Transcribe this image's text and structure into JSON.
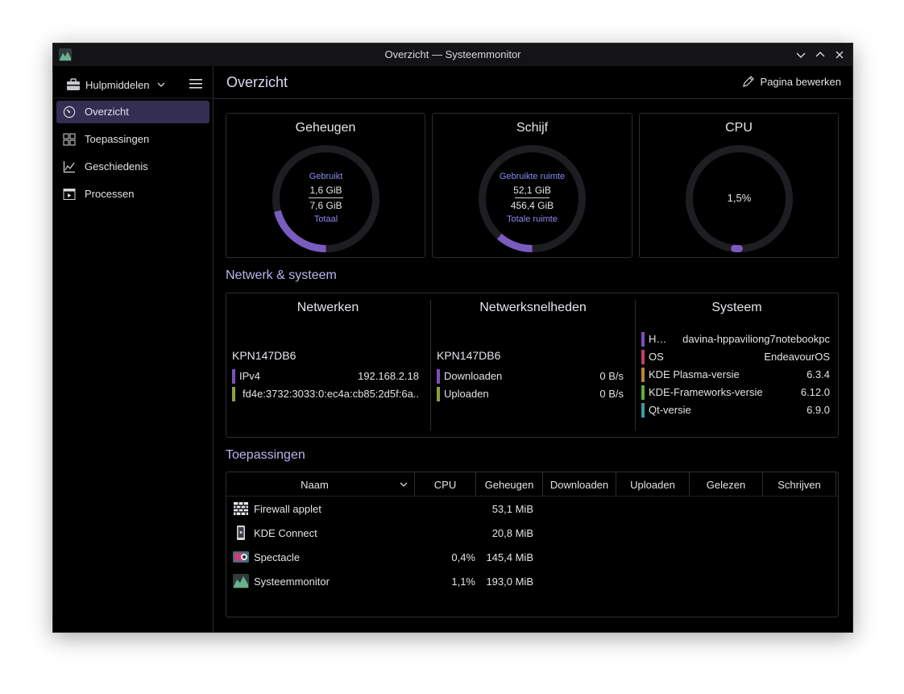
{
  "window": {
    "title": "Overzicht — Systeemmonitor",
    "app_icon": "systemmonitor-icon",
    "controls": [
      "minimize-icon",
      "maximize-icon",
      "close-icon"
    ]
  },
  "sidebar": {
    "tools_label": "Hulpmiddelen",
    "tools_icon": "toolbox-icon",
    "items": [
      {
        "label": "Overzicht",
        "icon": "gauge-icon",
        "active": true
      },
      {
        "label": "Toepassingen",
        "icon": "grid-icon",
        "active": false
      },
      {
        "label": "Geschiedenis",
        "icon": "chart-icon",
        "active": false
      },
      {
        "label": "Processen",
        "icon": "process-icon",
        "active": false
      }
    ]
  },
  "header": {
    "title": "Overzicht",
    "edit_label": "Pagina bewerken"
  },
  "cards": {
    "memory": {
      "title": "Geheugen",
      "used_label": "Gebruikt",
      "used": "1,6 GiB",
      "total": "7,6 GiB",
      "total_label": "Totaal",
      "fraction": 0.21
    },
    "disk": {
      "title": "Schijf",
      "used_label": "Gebruikte ruimte",
      "used": "52,1 GiB",
      "total": "456,4 GiB",
      "total_label": "Totale ruimte",
      "fraction": 0.114
    },
    "cpu": {
      "title": "CPU",
      "value": "1,5%",
      "fraction": 0.015
    }
  },
  "network_system": {
    "section_title": "Netwerk & systeem",
    "networks": {
      "title": "Netwerken",
      "name": "KPN147DB6",
      "rows": [
        {
          "key": "IPv4",
          "value": "192.168.2.18",
          "color": "#7b4fbf"
        },
        {
          "key": "",
          "value": "fd4e:3732:3033:0:ec4a:cb85:2d5f:6a..",
          "color": "#8fa03a"
        }
      ]
    },
    "speeds": {
      "title": "Netwerksnelheden",
      "name": "KPN147DB6",
      "rows": [
        {
          "key": "Downloaden",
          "value": "0 B/s",
          "color": "#7b4fbf"
        },
        {
          "key": "Uploaden",
          "value": "0 B/s",
          "color": "#8fa03a"
        }
      ]
    },
    "system": {
      "title": "Systeem",
      "rows": [
        {
          "key": "H…",
          "value": "davina-hppaviliong7notebookpc",
          "color": "#7b4fbf"
        },
        {
          "key": "OS",
          "value": "EndeavourOS",
          "color": "#c0406a"
        },
        {
          "key": "KDE Plasma-versie",
          "value": "6.3.4",
          "color": "#b8843a"
        },
        {
          "key": "KDE-Frameworks-versie",
          "value": "6.12.0",
          "color": "#5fae3e"
        },
        {
          "key": "Qt-versie",
          "value": "6.9.0",
          "color": "#3c9aa8"
        }
      ]
    }
  },
  "applications": {
    "section_title": "Toepassingen",
    "columns": [
      "Naam",
      "CPU",
      "Geheugen",
      "Downloaden",
      "Uploaden",
      "Gelezen",
      "Schrijven"
    ],
    "rows": [
      {
        "name": "Firewall applet",
        "icon": "firewall-icon",
        "cpu": "",
        "memory": "53,1 MiB"
      },
      {
        "name": "KDE Connect",
        "icon": "kdeconnect-icon",
        "cpu": "",
        "memory": "20,8 MiB"
      },
      {
        "name": "Spectacle",
        "icon": "spectacle-icon",
        "cpu": "0,4%",
        "memory": "145,4 MiB"
      },
      {
        "name": "Systeemmonitor",
        "icon": "systemmonitor-icon",
        "cpu": "1,1%",
        "memory": "193,0 MiB"
      }
    ]
  },
  "colors": {
    "accent": "#7a5cc0",
    "gauge_track": "#1e1e22",
    "active_nav": "#332e52"
  }
}
